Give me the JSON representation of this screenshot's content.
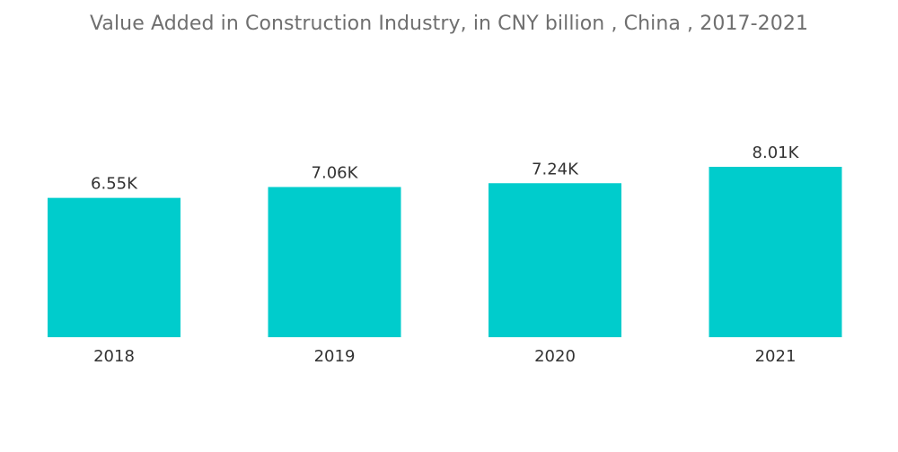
{
  "chart_data": {
    "type": "bar",
    "title": "Value Added in Construction Industry, in CNY billion , China , 2017-2021",
    "categories": [
      "2018",
      "2019",
      "2020",
      "2021"
    ],
    "values": [
      6550,
      7060,
      7240,
      8010
    ],
    "data_labels": [
      "6.55K",
      "7.06K",
      "7.24K",
      "8.01K"
    ],
    "xlabel": "",
    "ylabel": "",
    "ylim": [
      0,
      8010
    ],
    "grid": false,
    "legend": "none",
    "bar_color": "#00CCCC"
  }
}
